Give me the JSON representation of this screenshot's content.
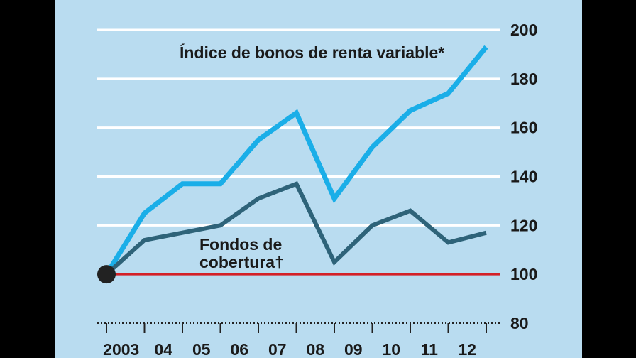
{
  "chart_data": {
    "type": "line",
    "x": [
      "2003",
      "04",
      "05",
      "06",
      "07",
      "08",
      "09",
      "10",
      "11",
      "12"
    ],
    "ylim": [
      80,
      200
    ],
    "yticks": [
      80,
      100,
      120,
      140,
      160,
      180,
      200
    ],
    "baseline": 100,
    "grid": true,
    "series": [
      {
        "name": "Índice de bonos de renta variable*",
        "color": "#1aaee8",
        "points": [
          [
            2003.0,
            100
          ],
          [
            2004.0,
            125
          ],
          [
            2005.0,
            137
          ],
          [
            2006.0,
            137
          ],
          [
            2007.0,
            155
          ],
          [
            2008.0,
            166
          ],
          [
            2009.0,
            131
          ],
          [
            2010.0,
            152
          ],
          [
            2011.0,
            167
          ],
          [
            2012.0,
            174
          ],
          [
            2013.0,
            193
          ]
        ]
      },
      {
        "name": "Fondos de cobertura†",
        "label_lines": [
          "Fondos de",
          "cobertura†"
        ],
        "color": "#2e6379",
        "points": [
          [
            2003.0,
            100
          ],
          [
            2004.0,
            114
          ],
          [
            2005.0,
            117
          ],
          [
            2006.0,
            120
          ],
          [
            2007.0,
            131
          ],
          [
            2008.0,
            137
          ],
          [
            2009.0,
            105
          ],
          [
            2010.0,
            120
          ],
          [
            2011.0,
            126
          ],
          [
            2012.0,
            113
          ],
          [
            2013.0,
            117
          ]
        ]
      }
    ],
    "start_marker": [
      2003.0,
      100
    ],
    "colors": {
      "background": "#b9dcf0",
      "gridline": "#ffffff",
      "baseline": "#d42027",
      "marker": "#222222"
    }
  }
}
